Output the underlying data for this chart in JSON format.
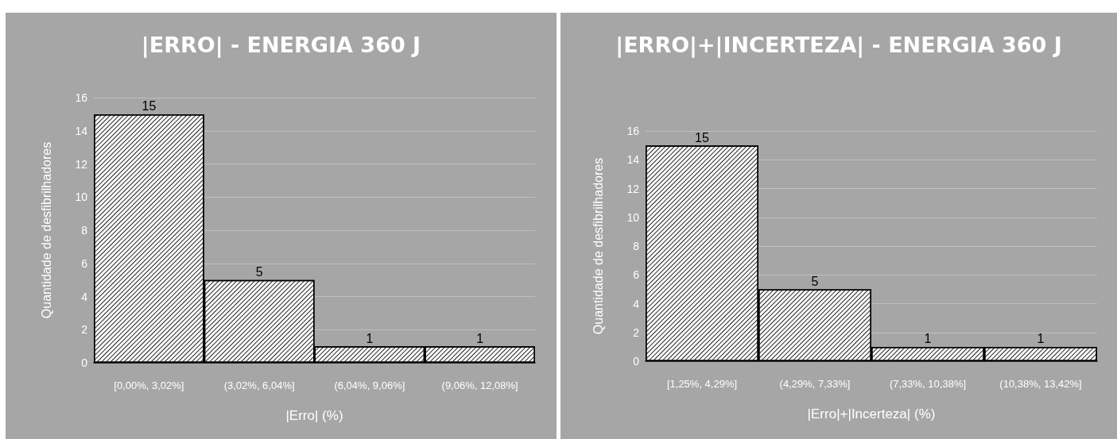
{
  "chart_data": [
    {
      "type": "bar",
      "title": "|ERRO| - ENERGIA 360 J",
      "xlabel": "|Erro| (%)",
      "ylabel": "Quantidade de desfibrilhadores",
      "categories": [
        "[0,00%, 3,02%]",
        "(3,02%, 6,04%]",
        "(6,04%, 9,06%]",
        "(9,06%, 12,08%]"
      ],
      "values": [
        15,
        5,
        1,
        1
      ],
      "color": "#ffffff",
      "ylim": [
        0,
        16
      ],
      "yticks": [
        0,
        2,
        4,
        6,
        8,
        10,
        12,
        14,
        16
      ],
      "grid": "y",
      "data_labels": true
    },
    {
      "type": "bar",
      "title": "|ERRO|+|INCERTEZA| - ENERGIA 360 J",
      "xlabel": "|Erro|+|Incerteza| (%)",
      "ylabel": "Quantidade de desfibrilhadores",
      "categories": [
        "[1,25%, 4,29%]",
        "(4,29%, 7,33%]",
        "(7,33%, 10,38%]",
        "(10,38%, 13,42%]"
      ],
      "values": [
        15,
        5,
        1,
        1
      ],
      "color": "#ffffff",
      "ylim": [
        0,
        16
      ],
      "yticks": [
        0,
        2,
        4,
        6,
        8,
        10,
        12,
        14,
        16
      ],
      "grid": "y",
      "data_labels": true
    }
  ]
}
